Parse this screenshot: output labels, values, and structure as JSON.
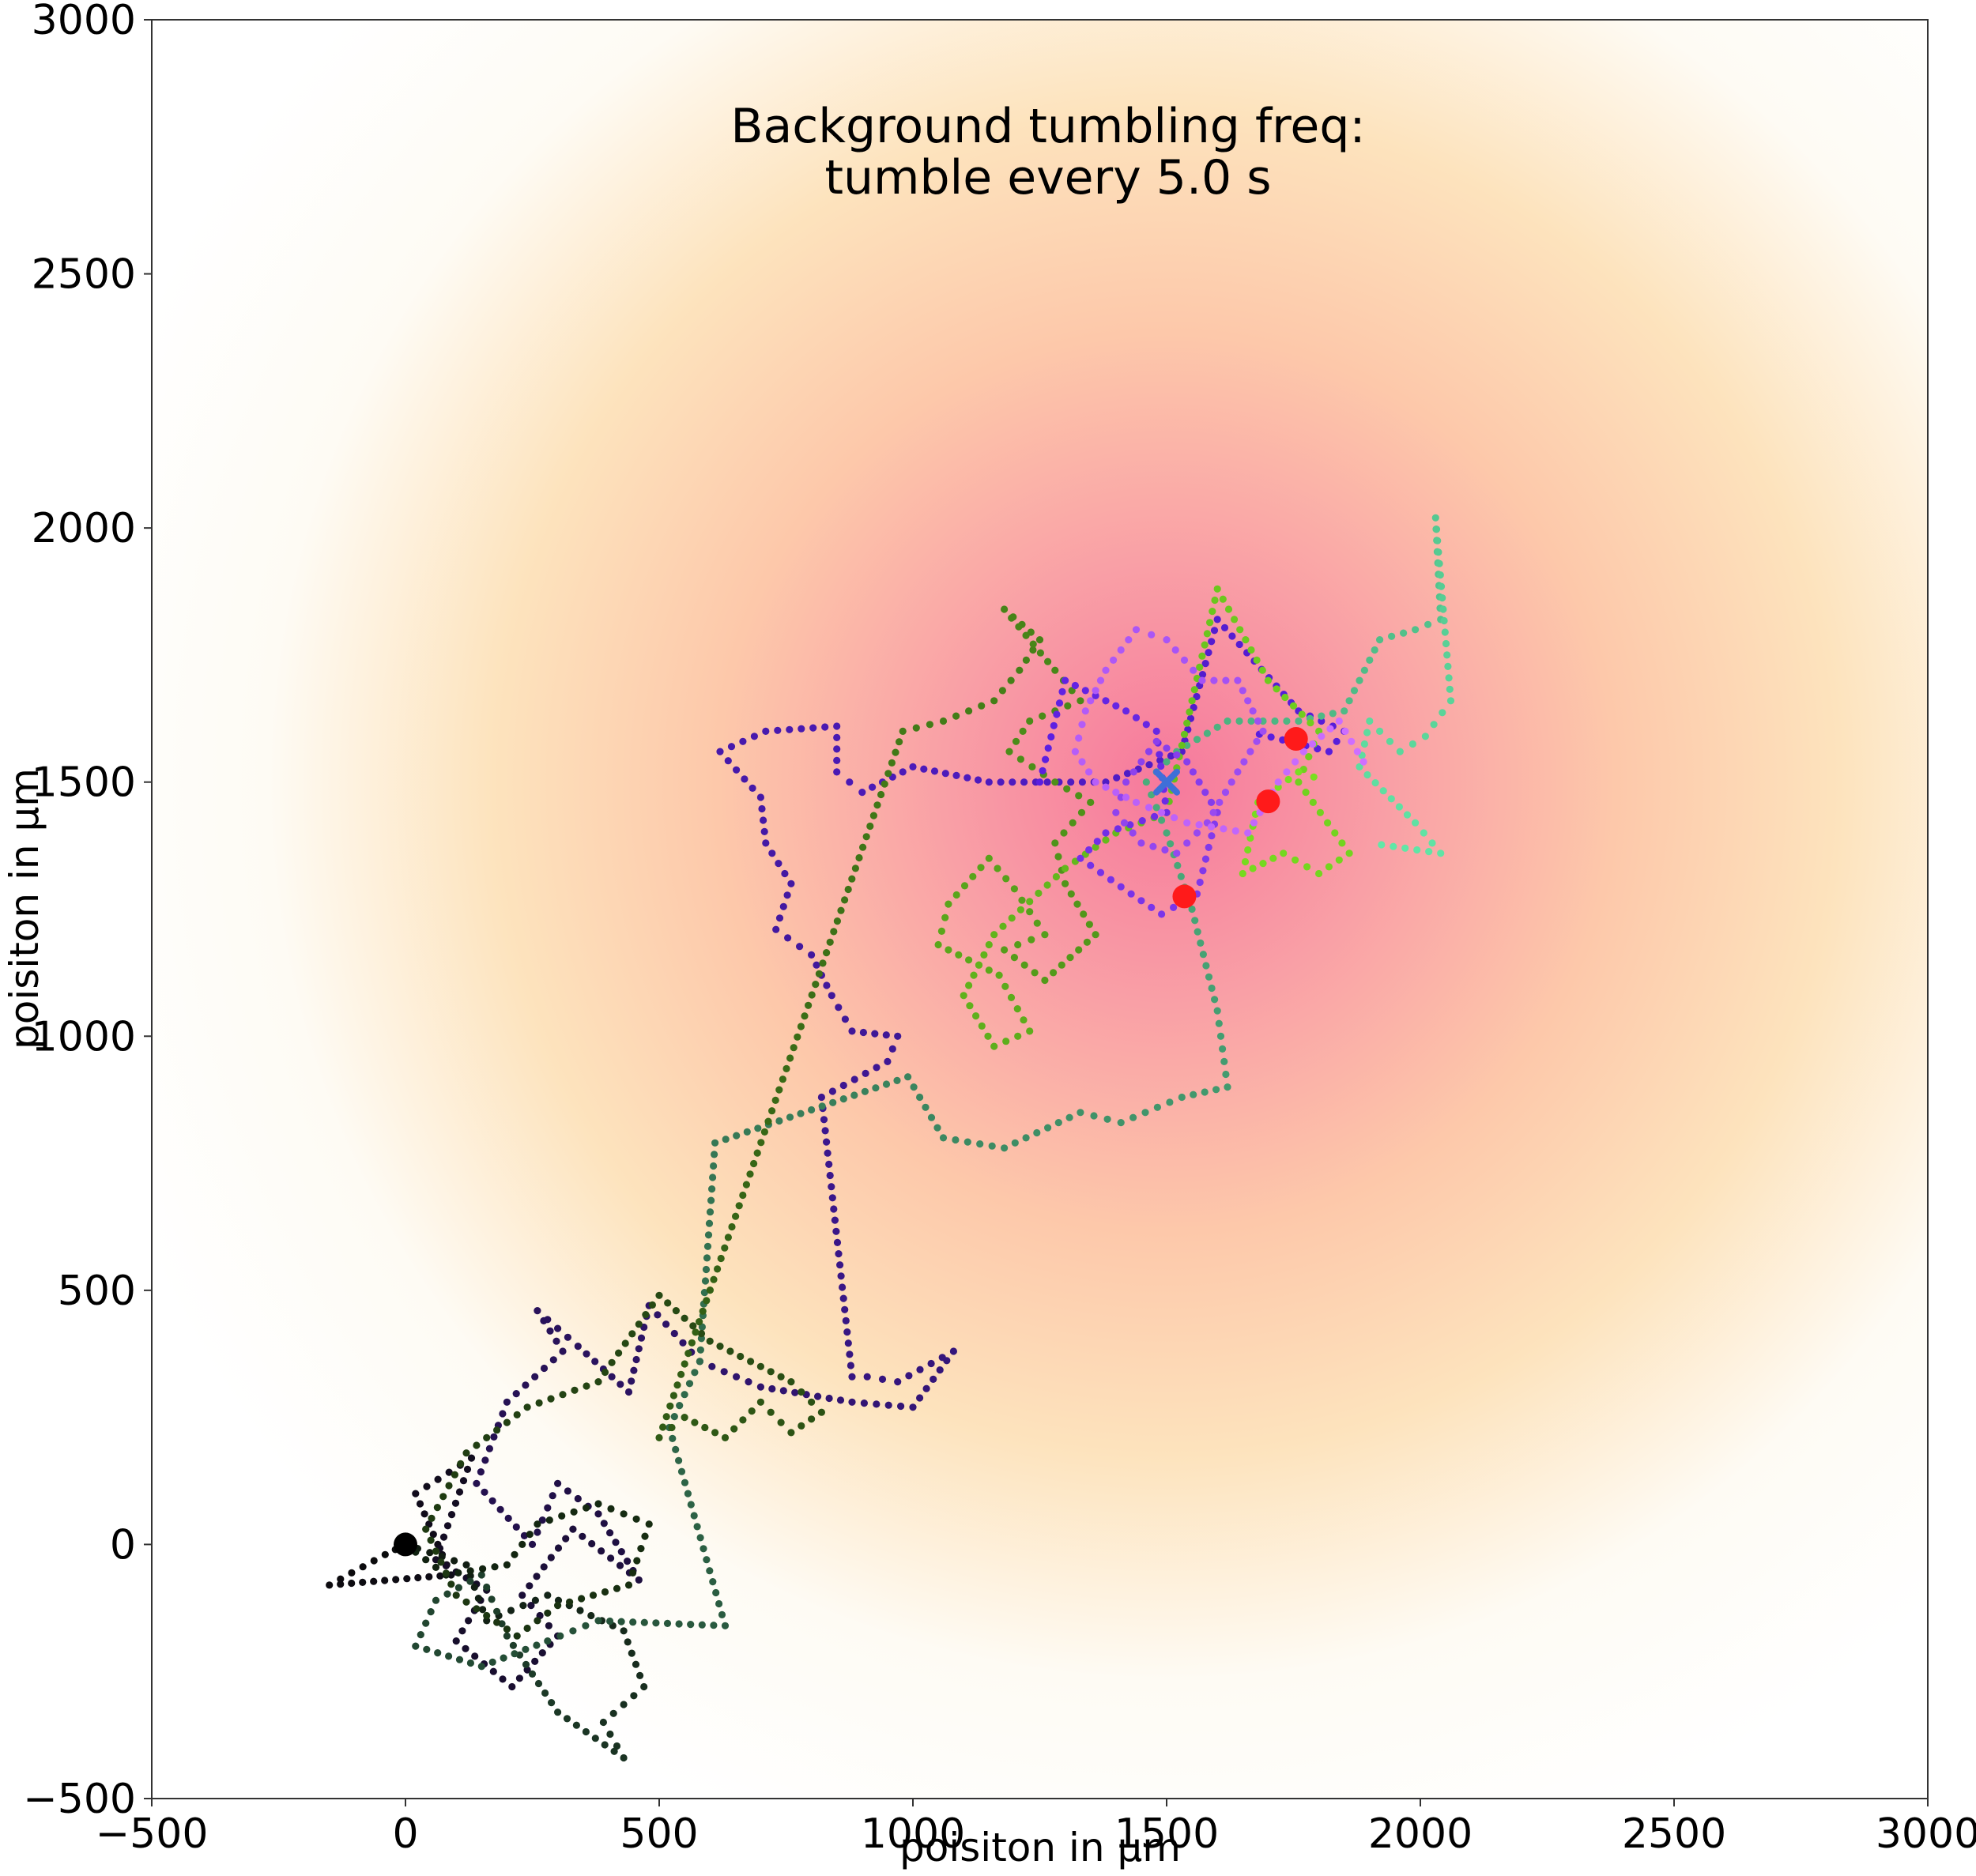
{
  "chart_data": {
    "type": "scatter",
    "title_lines": [
      "Background tumbling freq:",
      "tumble every 5.0 s"
    ],
    "xlabel": "poisiton in µm",
    "ylabel": "poisiton in µm",
    "xlim": [
      -500,
      3000
    ],
    "ylim": [
      -500,
      3000
    ],
    "xticks": [
      -500,
      0,
      500,
      1000,
      1500,
      2000,
      2500,
      3000
    ],
    "xtick_labels": [
      "−500",
      "0",
      "500",
      "1000",
      "1500",
      "2000",
      "2500",
      "3000"
    ],
    "yticks": [
      -500,
      0,
      500,
      1000,
      1500,
      2000,
      2500,
      3000
    ],
    "ytick_labels": [
      "−500",
      "0",
      "500",
      "1000",
      "1500",
      "2000",
      "2500",
      "3000"
    ],
    "grid": false,
    "background": {
      "type": "radial-gradient",
      "center": [
        1500,
        1500
      ],
      "colormap": [
        "#f6799c",
        "#f9a0a6",
        "#fdc8aa",
        "#fde3bd",
        "#fefbf4",
        "#ffffff"
      ]
    },
    "start_point": {
      "x": 0,
      "y": 0,
      "color": "#000000"
    },
    "target_point": {
      "x": 1500,
      "y": 1500,
      "color": "#3f6fd8",
      "marker": "x"
    },
    "end_points": [
      {
        "x": 1755,
        "y": 1585,
        "color": "#ff1a1a"
      },
      {
        "x": 1700,
        "y": 1462,
        "color": "#ff1a1a"
      },
      {
        "x": 1535,
        "y": 1275,
        "color": "#ff1a1a"
      }
    ],
    "series": [
      {
        "color_start": "#0b0b0b",
        "color_end": "#5a1ee0",
        "path": [
          [
            0,
            0
          ],
          [
            -40,
            -20
          ],
          [
            -150,
            -80
          ],
          [
            90,
            -60
          ],
          [
            20,
            100
          ],
          [
            130,
            170
          ],
          [
            60,
            -30
          ],
          [
            160,
            -90
          ],
          [
            100,
            -190
          ],
          [
            210,
            -280
          ],
          [
            300,
            -180
          ],
          [
            230,
            -100
          ],
          [
            330,
            30
          ],
          [
            460,
            -70
          ],
          [
            380,
            60
          ],
          [
            300,
            120
          ],
          [
            250,
            0
          ],
          [
            140,
            120
          ],
          [
            200,
            280
          ],
          [
            310,
            380
          ],
          [
            260,
            460
          ],
          [
            340,
            390
          ],
          [
            440,
            300
          ],
          [
            480,
            470
          ],
          [
            580,
            360
          ],
          [
            700,
            310
          ],
          [
            880,
            280
          ],
          [
            1000,
            270
          ],
          [
            1080,
            380
          ],
          [
            970,
            320
          ],
          [
            910,
            330
          ],
          [
            880,
            330
          ],
          [
            820,
            880
          ],
          [
            950,
            950
          ],
          [
            970,
            1000
          ],
          [
            880,
            1010
          ],
          [
            840,
            1080
          ],
          [
            800,
            1160
          ],
          [
            730,
            1210
          ],
          [
            760,
            1300
          ],
          [
            710,
            1380
          ],
          [
            700,
            1470
          ],
          [
            620,
            1560
          ],
          [
            710,
            1600
          ],
          [
            850,
            1610
          ],
          [
            850,
            1520
          ],
          [
            900,
            1480
          ],
          [
            1000,
            1530
          ],
          [
            1150,
            1500
          ],
          [
            1380,
            1500
          ],
          [
            1530,
            1560
          ],
          [
            1600,
            1820
          ],
          [
            1760,
            1640
          ],
          [
            1850,
            1600
          ],
          [
            1820,
            1560
          ],
          [
            1660,
            1600
          ]
        ]
      },
      {
        "color_start": "#101a10",
        "color_end": "#62e8a8",
        "path": [
          [
            0,
            0
          ],
          [
            120,
            -40
          ],
          [
            160,
            -150
          ],
          [
            280,
            -100
          ],
          [
            430,
            -170
          ],
          [
            470,
            -280
          ],
          [
            390,
            -350
          ],
          [
            430,
            -420
          ],
          [
            300,
            -330
          ],
          [
            200,
            -180
          ],
          [
            150,
            -60
          ],
          [
            60,
            -110
          ],
          [
            20,
            -200
          ],
          [
            150,
            -240
          ],
          [
            280,
            -190
          ],
          [
            380,
            -150
          ],
          [
            630,
            -160
          ],
          [
            520,
            230
          ],
          [
            580,
            360
          ],
          [
            610,
            790
          ],
          [
            990,
            920
          ],
          [
            1060,
            800
          ],
          [
            1180,
            780
          ],
          [
            1330,
            850
          ],
          [
            1410,
            830
          ],
          [
            1530,
            880
          ],
          [
            1620,
            900
          ],
          [
            1600,
            1050
          ],
          [
            1550,
            1250
          ],
          [
            1500,
            1400
          ],
          [
            1460,
            1500
          ],
          [
            1520,
            1560
          ],
          [
            1620,
            1620
          ],
          [
            1760,
            1620
          ],
          [
            1850,
            1640
          ],
          [
            1920,
            1780
          ],
          [
            1990,
            1800
          ],
          [
            2040,
            1820
          ],
          [
            2030,
            2020
          ],
          [
            2060,
            1660
          ],
          [
            2010,
            1590
          ],
          [
            1960,
            1560
          ],
          [
            1900,
            1620
          ],
          [
            1880,
            1530
          ],
          [
            1990,
            1420
          ],
          [
            2040,
            1360
          ],
          [
            1900,
            1380
          ]
        ]
      },
      {
        "color_start": "#102010",
        "color_end": "#7ae020",
        "path": [
          [
            0,
            0
          ],
          [
            80,
            -60
          ],
          [
            200,
            -40
          ],
          [
            260,
            40
          ],
          [
            380,
            80
          ],
          [
            480,
            40
          ],
          [
            440,
            -80
          ],
          [
            300,
            -120
          ],
          [
            220,
            -180
          ],
          [
            100,
            -100
          ],
          [
            40,
            30
          ],
          [
            120,
            180
          ],
          [
            240,
            270
          ],
          [
            380,
            320
          ],
          [
            500,
            490
          ],
          [
            600,
            400
          ],
          [
            680,
            360
          ],
          [
            760,
            320
          ],
          [
            820,
            260
          ],
          [
            760,
            220
          ],
          [
            700,
            280
          ],
          [
            630,
            210
          ],
          [
            550,
            250
          ],
          [
            500,
            210
          ],
          [
            980,
            1600
          ],
          [
            1060,
            1620
          ],
          [
            1160,
            1660
          ],
          [
            1210,
            1720
          ],
          [
            1250,
            1780
          ],
          [
            1180,
            1840
          ],
          [
            1280,
            1720
          ],
          [
            1330,
            1660
          ],
          [
            1230,
            1620
          ],
          [
            1190,
            1560
          ],
          [
            1280,
            1500
          ],
          [
            1350,
            1460
          ],
          [
            1280,
            1380
          ],
          [
            1300,
            1300
          ],
          [
            1360,
            1200
          ],
          [
            1260,
            1110
          ],
          [
            1180,
            1170
          ],
          [
            1260,
            1200
          ],
          [
            1200,
            1290
          ],
          [
            1150,
            1350
          ],
          [
            1070,
            1260
          ],
          [
            1050,
            1180
          ],
          [
            1170,
            1120
          ],
          [
            1230,
            1010
          ],
          [
            1160,
            980
          ],
          [
            1100,
            1080
          ],
          [
            1160,
            1200
          ],
          [
            1300,
            1330
          ],
          [
            1400,
            1400
          ],
          [
            1500,
            1440
          ],
          [
            1600,
            1880
          ],
          [
            1700,
            1700
          ],
          [
            1800,
            1600
          ],
          [
            1760,
            1500
          ],
          [
            1860,
            1360
          ],
          [
            1800,
            1320
          ],
          [
            1730,
            1360
          ],
          [
            1650,
            1320
          ],
          [
            1680,
            1460
          ],
          [
            1760,
            1520
          ],
          [
            1820,
            1500
          ]
        ]
      },
      {
        "color_start": "#5a1ee0",
        "color_end": "#d070ff",
        "path": [
          [
            1250,
            1500
          ],
          [
            1300,
            1700
          ],
          [
            1420,
            1640
          ],
          [
            1480,
            1600
          ],
          [
            1500,
            1440
          ],
          [
            1380,
            1400
          ],
          [
            1330,
            1350
          ],
          [
            1430,
            1280
          ],
          [
            1490,
            1240
          ],
          [
            1560,
            1280
          ],
          [
            1600,
            1440
          ],
          [
            1540,
            1540
          ],
          [
            1480,
            1580
          ],
          [
            1420,
            1500
          ],
          [
            1400,
            1440
          ],
          [
            1450,
            1380
          ],
          [
            1520,
            1360
          ],
          [
            1580,
            1420
          ],
          [
            1640,
            1520
          ],
          [
            1690,
            1600
          ],
          [
            1640,
            1700
          ],
          [
            1570,
            1700
          ],
          [
            1500,
            1780
          ],
          [
            1440,
            1800
          ],
          [
            1380,
            1720
          ],
          [
            1340,
            1640
          ],
          [
            1320,
            1560
          ],
          [
            1360,
            1500
          ],
          [
            1440,
            1460
          ],
          [
            1540,
            1420
          ],
          [
            1660,
            1400
          ],
          [
            1720,
            1500
          ],
          [
            1770,
            1560
          ],
          [
            1840,
            1620
          ],
          [
            1900,
            1520
          ]
        ]
      }
    ]
  }
}
